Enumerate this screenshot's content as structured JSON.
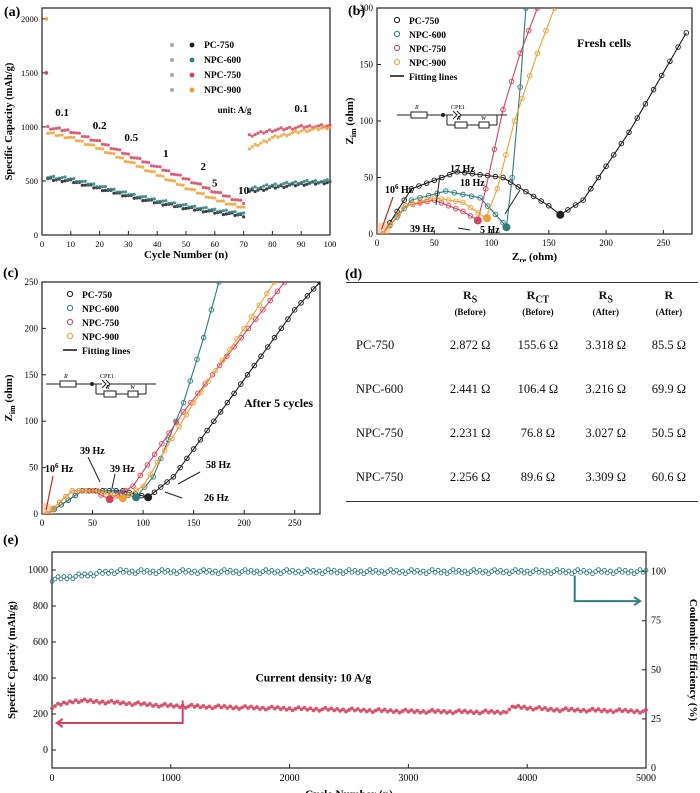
{
  "panels": {
    "a": "(a)",
    "b": "(b)",
    "c": "(c)",
    "d": "(d)",
    "e": "(e)"
  },
  "chart_data": [
    {
      "id": "a",
      "type": "scatter",
      "xlabel": "Cycle Number (n)",
      "ylabel": "Specific Capacity (mAh/g)",
      "xlim": [
        0,
        100
      ],
      "ylim": [
        0,
        2100
      ],
      "xticks": [
        "0",
        "10",
        "20",
        "30",
        "40",
        "50",
        "60",
        "70",
        "80",
        "90",
        "100"
      ],
      "yticks": [
        "0",
        "500",
        "1000",
        "1500",
        "2000"
      ],
      "legend": [
        "PC-750",
        "NPC-600",
        "NPC-750",
        "NPC-900"
      ],
      "unit_note": "unit: A/g",
      "rate_labels": [
        "0.1",
        "0.2",
        "0.5",
        "1",
        "2",
        "5",
        "10",
        "0.1"
      ],
      "initial_points": {
        "NPC-900": 2000,
        "NPC-750": 1500
      },
      "series": [
        {
          "name": "PC-750",
          "color": "#1a1a1a",
          "values": [
            [
              1,
              520
            ],
            [
              10,
              500
            ],
            [
              20,
              430
            ],
            [
              30,
              360
            ],
            [
              40,
              300
            ],
            [
              50,
              250
            ],
            [
              60,
              210
            ],
            [
              70,
              180
            ],
            [
              71,
              180
            ],
            [
              72,
              400
            ],
            [
              80,
              440
            ],
            [
              90,
              470
            ],
            [
              100,
              490
            ]
          ]
        },
        {
          "name": "NPC-600",
          "color": "#2e7d7d",
          "values": [
            [
              1,
              540
            ],
            [
              10,
              520
            ],
            [
              20,
              450
            ],
            [
              30,
              380
            ],
            [
              40,
              320
            ],
            [
              50,
              270
            ],
            [
              60,
              230
            ],
            [
              70,
              200
            ],
            [
              71,
              200
            ],
            [
              72,
              430
            ],
            [
              80,
              460
            ],
            [
              90,
              490
            ],
            [
              100,
              500
            ]
          ]
        },
        {
          "name": "NPC-750",
          "color": "#d6415f",
          "values": [
            [
              1,
              1000
            ],
            [
              10,
              960
            ],
            [
              20,
              860
            ],
            [
              30,
              740
            ],
            [
              40,
              630
            ],
            [
              50,
              520
            ],
            [
              60,
              400
            ],
            [
              70,
              300
            ],
            [
              71,
              300
            ],
            [
              72,
              920
            ],
            [
              80,
              970
            ],
            [
              90,
              1000
            ],
            [
              100,
              1010
            ]
          ]
        },
        {
          "name": "NPC-900",
          "color": "#f0a030",
          "values": [
            [
              1,
              950
            ],
            [
              10,
              900
            ],
            [
              20,
              800
            ],
            [
              30,
              680
            ],
            [
              40,
              560
            ],
            [
              50,
              440
            ],
            [
              60,
              330
            ],
            [
              70,
              250
            ],
            [
              71,
              250
            ],
            [
              72,
              800
            ],
            [
              80,
              900
            ],
            [
              90,
              960
            ],
            [
              100,
              1000
            ]
          ]
        }
      ]
    },
    {
      "id": "b",
      "type": "scatter",
      "title": "Fresh cells",
      "xlabel_main": "Z",
      "xlabel_sub": "re",
      "xlabel_unit": " (ohm)",
      "ylabel_main": "Z",
      "ylabel_sub": "im",
      "ylabel_unit": " (ohm)",
      "xlim": [
        0,
        275
      ],
      "ylim": [
        0,
        200
      ],
      "xticks": [
        "0",
        "50",
        "100",
        "150",
        "200",
        "250"
      ],
      "yticks": [
        "0",
        "50",
        "100",
        "150",
        "200"
      ],
      "legend": [
        "PC-750",
        "NPC-600",
        "NPC-750",
        "NPC-900",
        "Fitting lines"
      ],
      "circuit_labels": [
        "R",
        "CPE1",
        "R",
        "W"
      ],
      "freq_labels": [
        "10",
        "6",
        "Hz",
        "17 Hz",
        "18 Hz",
        "39 Hz",
        "5 Hz"
      ],
      "series": [
        {
          "name": "PC-750",
          "color": "#1a1a1a",
          "values": [
            [
              5,
              0
            ],
            [
              30,
              40
            ],
            [
              70,
              55
            ],
            [
              110,
              50
            ],
            [
              150,
              25
            ],
            [
              160,
              17
            ],
            [
              180,
              30
            ],
            [
              220,
              90
            ],
            [
              270,
              178
            ]
          ]
        },
        {
          "name": "NPC-600",
          "color": "#2e7d7d",
          "values": [
            [
              5,
              0
            ],
            [
              30,
              30
            ],
            [
              60,
              38
            ],
            [
              90,
              32
            ],
            [
              110,
              10
            ],
            [
              113,
              6
            ],
            [
              118,
              50
            ],
            [
              125,
              130
            ],
            [
              130,
              200
            ]
          ]
        },
        {
          "name": "NPC-750",
          "color": "#d6415f",
          "values": [
            [
              5,
              0
            ],
            [
              25,
              25
            ],
            [
              50,
              30
            ],
            [
              75,
              20
            ],
            [
              88,
              12
            ],
            [
              95,
              40
            ],
            [
              110,
              110
            ],
            [
              125,
              160
            ],
            [
              140,
              200
            ]
          ]
        },
        {
          "name": "NPC-900",
          "color": "#f0a030",
          "values": [
            [
              5,
              0
            ],
            [
              25,
              25
            ],
            [
              50,
              32
            ],
            [
              75,
              28
            ],
            [
              95,
              14
            ],
            [
              105,
              40
            ],
            [
              120,
              100
            ],
            [
              140,
              160
            ],
            [
              155,
              200
            ]
          ]
        }
      ]
    },
    {
      "id": "c",
      "type": "scatter",
      "title": "After 5 cycles",
      "xlabel_main": "Z",
      "xlabel_sub": "re",
      "xlabel_unit": " (ohm)",
      "ylabel_main": "Z",
      "ylabel_sub": "im",
      "ylabel_unit": " (ohm)",
      "xlim": [
        0,
        275
      ],
      "ylim": [
        0,
        250
      ],
      "xticks": [
        "0",
        "50",
        "100",
        "150",
        "200",
        "250"
      ],
      "yticks": [
        "0",
        "50",
        "100",
        "150",
        "200",
        "250"
      ],
      "legend": [
        "PC-750",
        "NPC-600",
        "NPC-750",
        "NPC-900",
        "Fitting lines"
      ],
      "circuit_labels": [
        "R",
        "CPE1",
        "R",
        "W"
      ],
      "freq_labels": [
        "10",
        "6",
        "Hz",
        "39 Hz",
        "39 Hz",
        "58 Hz",
        "26 Hz"
      ],
      "series": [
        {
          "name": "PC-750",
          "color": "#1a1a1a",
          "values": [
            [
              5,
              0
            ],
            [
              40,
              25
            ],
            [
              80,
              25
            ],
            [
              105,
              18
            ],
            [
              130,
              40
            ],
            [
              170,
              100
            ],
            [
              210,
              160
            ],
            [
              250,
              220
            ],
            [
              275,
              250
            ]
          ]
        },
        {
          "name": "NPC-600",
          "color": "#2e7d7d",
          "values": [
            [
              5,
              0
            ],
            [
              40,
              25
            ],
            [
              70,
              25
            ],
            [
              93,
              18
            ],
            [
              110,
              40
            ],
            [
              140,
              120
            ],
            [
              160,
              190
            ],
            [
              175,
              250
            ]
          ]
        },
        {
          "name": "NPC-750",
          "color": "#d6415f",
          "values": [
            [
              5,
              0
            ],
            [
              30,
              25
            ],
            [
              50,
              25
            ],
            [
              67,
              16
            ],
            [
              90,
              30
            ],
            [
              140,
              110
            ],
            [
              190,
              180
            ],
            [
              240,
              250
            ]
          ]
        },
        {
          "name": "NPC-900",
          "color": "#f0a030",
          "values": [
            [
              5,
              0
            ],
            [
              30,
              25
            ],
            [
              55,
              25
            ],
            [
              80,
              17
            ],
            [
              100,
              30
            ],
            [
              150,
              120
            ],
            [
              200,
              200
            ],
            [
              230,
              250
            ]
          ]
        }
      ]
    },
    {
      "id": "e",
      "type": "scatter",
      "xlabel": "Cycle Number (n)",
      "ylabel": "Specific Cpacity (mAh/g)",
      "ylabel_right": "Coulombic Efficiency (%)",
      "xlim": [
        0,
        5000
      ],
      "ylim": [
        -100,
        1100
      ],
      "ylim_right": [
        0,
        110
      ],
      "xticks": [
        "0",
        "1000",
        "2000",
        "3000",
        "4000",
        "5000"
      ],
      "yticks": [
        "0",
        "200",
        "400",
        "600",
        "800",
        "1000"
      ],
      "yticks_right": [
        "0",
        "25",
        "50",
        "75",
        "100"
      ],
      "annotation": "Current density: 10 A/g",
      "series": [
        {
          "name": "Specific capacity",
          "color": "#d6415f",
          "axis": "left",
          "values": [
            [
              0,
              240
            ],
            [
              200,
              275
            ],
            [
              500,
              265
            ],
            [
              1000,
              245
            ],
            [
              2000,
              230
            ],
            [
              3000,
              215
            ],
            [
              3800,
              210
            ],
            [
              3900,
              240
            ],
            [
              4200,
              225
            ],
            [
              5000,
              215
            ]
          ]
        },
        {
          "name": "Coulombic efficiency",
          "color": "#2e7d7d",
          "axis": "right",
          "values": [
            [
              0,
              96
            ],
            [
              500,
              100
            ],
            [
              1000,
              100
            ],
            [
              2000,
              100
            ],
            [
              3000,
              100
            ],
            [
              4000,
              100
            ],
            [
              5000,
              100
            ]
          ]
        }
      ]
    }
  ],
  "table": {
    "headers": [
      {
        "main": "R",
        "sub": "S",
        "note": "(Before)"
      },
      {
        "main": "R",
        "sub": "CT",
        "note": "(Before)"
      },
      {
        "main": "R",
        "sub": "S",
        "note": "(After)"
      },
      {
        "main": "R",
        "sub": "",
        "note": "(After)"
      }
    ],
    "rows": [
      {
        "name": "PC-750",
        "v1": "2.872 Ω",
        "v2": "155.6 Ω",
        "v3": "3.318 Ω",
        "v4": "85.5 Ω"
      },
      {
        "name": "NPC-600",
        "v1": "2.441 Ω",
        "v2": "106.4 Ω",
        "v3": "3.216 Ω",
        "v4": "69.9 Ω"
      },
      {
        "name": "NPC-750",
        "v1": "2.231 Ω",
        "v2": "76.8 Ω",
        "v3": "3.027 Ω",
        "v4": "50.5 Ω"
      },
      {
        "name": "NPC-750",
        "v1": "2.256 Ω",
        "v2": "89.6 Ω",
        "v3": "3.309 Ω",
        "v4": "60.6 Ω"
      }
    ]
  }
}
